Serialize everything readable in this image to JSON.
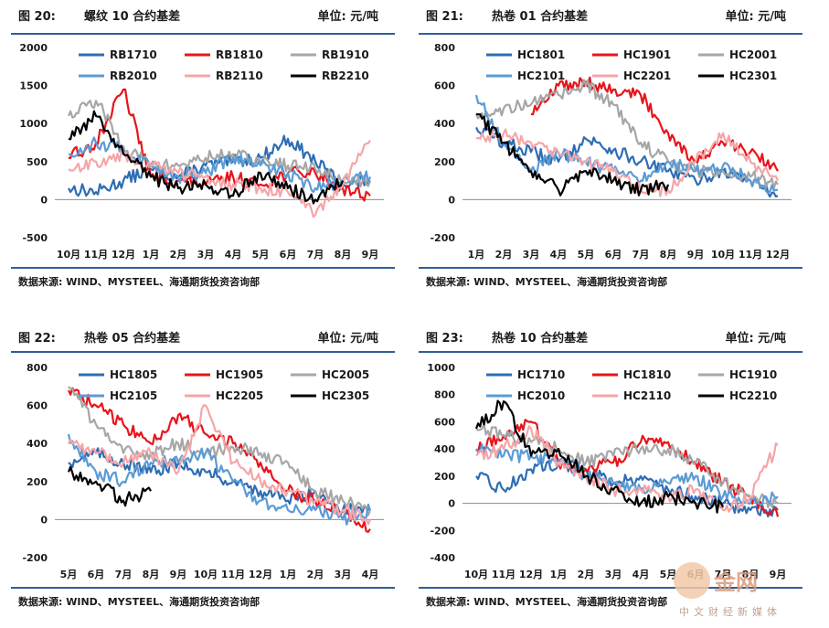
{
  "panels": [
    {
      "fig": "图 20:",
      "title": "螺纹 10 合约基差",
      "unit": "单位: 元/吨",
      "source": "数据来源: WIND、MYSTEEL、海通期货投资咨询部"
    },
    {
      "fig": "图 21:",
      "title": "热卷 01 合约基差",
      "unit": "单位: 元/吨",
      "source": "数据来源: WIND、MYSTEEL、海通期货投资咨询部"
    },
    {
      "fig": "图 22:",
      "title": "热卷 05 合约基差",
      "unit": "单位: 元/吨",
      "source": "数据来源: WIND、MYSTEEL、海通期货投资咨询部"
    },
    {
      "fig": "图 23:",
      "title": "热卷 10 合约基差",
      "unit": "单位: 元/吨",
      "source": "数据来源: WIND、MYSTEEL、海通期货投资咨询部"
    }
  ],
  "watermark": {
    "big": "金网",
    "small": "中文财经新媒体"
  },
  "chart_data": [
    {
      "type": "line",
      "title": "螺纹 10 合约基差",
      "categories": [
        "10月",
        "11月",
        "12月",
        "1月",
        "2月",
        "3月",
        "4月",
        "5月",
        "6月",
        "7月",
        "8月",
        "9月"
      ],
      "ylim": [
        -500,
        2000
      ],
      "yticks": [
        -500,
        0,
        500,
        1000,
        1500,
        2000
      ],
      "legend": "top",
      "series": [
        {
          "name": "RB1710",
          "color": "#2e6db4",
          "values": [
            150,
            100,
            250,
            400,
            300,
            450,
            500,
            550,
            800,
            500,
            200,
            250
          ]
        },
        {
          "name": "RB1810",
          "color": "#e8141b",
          "values": [
            550,
            750,
            1450,
            300,
            250,
            200,
            300,
            200,
            350,
            350,
            150,
            50
          ]
        },
        {
          "name": "RB1910",
          "color": "#a6a6a6",
          "values": [
            1100,
            1300,
            700,
            450,
            450,
            550,
            600,
            500,
            450,
            400,
            250,
            250
          ]
        },
        {
          "name": "RB2010",
          "color": "#5b9bd5",
          "values": [
            600,
            750,
            650,
            450,
            300,
            350,
            550,
            450,
            350,
            150,
            250,
            300
          ]
        },
        {
          "name": "RB2110",
          "color": "#f4a6a8",
          "values": [
            400,
            500,
            600,
            450,
            350,
            300,
            200,
            150,
            100,
            -200,
            200,
            780
          ]
        },
        {
          "name": "RB2210",
          "color": "#000000",
          "values": [
            800,
            1100,
            600,
            300,
            150,
            200,
            50,
            350,
            150,
            0,
            250,
            null
          ]
        }
      ]
    },
    {
      "type": "line",
      "title": "热卷 01 合约基差",
      "categories": [
        "1月",
        "2月",
        "3月",
        "4月",
        "5月",
        "6月",
        "7月",
        "8月",
        "9月",
        "10月",
        "11月",
        "12月"
      ],
      "ylim": [
        -200,
        800
      ],
      "yticks": [
        -200,
        0,
        200,
        400,
        600,
        800
      ],
      "legend": "top",
      "series": [
        {
          "name": "HC1801",
          "color": "#2e6db4",
          "values": [
            380,
            300,
            250,
            200,
            320,
            260,
            200,
            150,
            100,
            150,
            100,
            20
          ]
        },
        {
          "name": "HC1901",
          "color": "#e8141b",
          "values": [
            null,
            null,
            450,
            600,
            620,
            580,
            550,
            350,
            200,
            300,
            250,
            150
          ]
        },
        {
          "name": "HC2001",
          "color": "#a6a6a6",
          "values": [
            450,
            480,
            500,
            550,
            600,
            500,
            300,
            200,
            150,
            150,
            120,
            80
          ]
        },
        {
          "name": "HC2101",
          "color": "#5b9bd5",
          "values": [
            550,
            300,
            150,
            250,
            200,
            150,
            100,
            200,
            150,
            180,
            100,
            50
          ]
        },
        {
          "name": "HC2201",
          "color": "#f4a6a8",
          "values": [
            320,
            350,
            300,
            250,
            200,
            150,
            50,
            50,
            200,
            350,
            200,
            100
          ]
        },
        {
          "name": "HC2301",
          "color": "#000000",
          "values": [
            450,
            300,
            150,
            50,
            150,
            100,
            50,
            80,
            null,
            null,
            null,
            null
          ]
        }
      ]
    },
    {
      "type": "line",
      "title": "热卷 05 合约基差",
      "categories": [
        "5月",
        "6月",
        "7月",
        "8月",
        "9月",
        "10月",
        "11月",
        "12月",
        "1月",
        "2月",
        "3月",
        "4月"
      ],
      "ylim": [
        -200,
        800
      ],
      "yticks": [
        -200,
        0,
        200,
        400,
        600,
        800
      ],
      "legend": "top",
      "series": [
        {
          "name": "HC1805",
          "color": "#2e6db4",
          "values": [
            300,
            350,
            300,
            250,
            300,
            250,
            200,
            150,
            100,
            150,
            50,
            50
          ]
        },
        {
          "name": "HC1905",
          "color": "#e8141b",
          "values": [
            680,
            600,
            500,
            400,
            550,
            450,
            400,
            300,
            150,
            100,
            50,
            -50
          ]
        },
        {
          "name": "HC2005",
          "color": "#a6a6a6",
          "values": [
            700,
            500,
            350,
            350,
            400,
            350,
            380,
            350,
            300,
            150,
            100,
            50
          ]
        },
        {
          "name": "HC2105",
          "color": "#5b9bd5",
          "values": [
            450,
            250,
            200,
            300,
            300,
            350,
            200,
            100,
            50,
            50,
            0,
            50
          ]
        },
        {
          "name": "HC2205",
          "color": "#f4a6a8",
          "values": [
            400,
            350,
            300,
            350,
            250,
            600,
            300,
            200,
            150,
            100,
            50,
            0
          ]
        },
        {
          "name": "HC2305",
          "color": "#000000",
          "values": [
            250,
            200,
            100,
            150,
            null,
            null,
            null,
            null,
            null,
            null,
            null,
            null
          ]
        }
      ]
    },
    {
      "type": "line",
      "title": "热卷 10 合约基差",
      "categories": [
        "10月",
        "11月",
        "12月",
        "1月",
        "2月",
        "3月",
        "4月",
        "5月",
        "6月",
        "7月",
        "8月",
        "9月"
      ],
      "ylim": [
        -400,
        1000
      ],
      "yticks": [
        -400,
        -200,
        0,
        200,
        400,
        600,
        800,
        1000
      ],
      "legend": "top",
      "series": [
        {
          "name": "HC1710",
          "color": "#2e6db4",
          "values": [
            200,
            100,
            250,
            300,
            250,
            150,
            200,
            100,
            50,
            0,
            -50,
            -50
          ]
        },
        {
          "name": "HC1810",
          "color": "#e8141b",
          "values": [
            400,
            500,
            600,
            300,
            250,
            300,
            450,
            450,
            300,
            150,
            50,
            -100
          ]
        },
        {
          "name": "HC1910",
          "color": "#a6a6a6",
          "values": [
            550,
            500,
            450,
            400,
            300,
            350,
            400,
            400,
            300,
            150,
            50,
            0
          ]
        },
        {
          "name": "HC2010",
          "color": "#5b9bd5",
          "values": [
            400,
            350,
            350,
            300,
            200,
            150,
            100,
            150,
            200,
            50,
            0,
            50
          ]
        },
        {
          "name": "HC2110",
          "color": "#f4a6a8",
          "values": [
            350,
            400,
            550,
            300,
            200,
            100,
            100,
            50,
            100,
            -50,
            50,
            430
          ]
        },
        {
          "name": "HC2210",
          "color": "#000000",
          "values": [
            550,
            750,
            350,
            400,
            200,
            100,
            0,
            50,
            0,
            -30,
            null,
            null
          ]
        }
      ]
    }
  ]
}
